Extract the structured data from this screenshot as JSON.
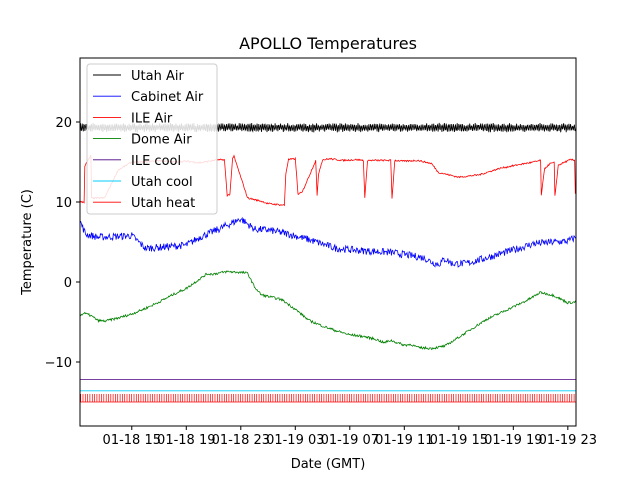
{
  "chart_data": {
    "type": "line",
    "title": "APOLLO Temperatures",
    "xlabel": "Date (GMT)",
    "ylabel": "Temperature (C)",
    "xlim": [
      11.2,
      47.6
    ],
    "ylim": [
      -18,
      28
    ],
    "x_unit": "hours since 01-18 00:00 GMT",
    "xticks": [
      {
        "x": 15,
        "label": "01-18 15"
      },
      {
        "x": 19,
        "label": "01-18 19"
      },
      {
        "x": 23,
        "label": "01-18 23"
      },
      {
        "x": 27,
        "label": "01-19 03"
      },
      {
        "x": 31,
        "label": "01-19 07"
      },
      {
        "x": 35,
        "label": "01-19 11"
      },
      {
        "x": 39,
        "label": "01-19 15"
      },
      {
        "x": 43,
        "label": "01-19 19"
      },
      {
        "x": 47,
        "label": "01-19 23"
      }
    ],
    "yticks": [
      {
        "y": -10,
        "label": "−10"
      },
      {
        "y": 0,
        "label": "0"
      },
      {
        "y": 10,
        "label": "10"
      },
      {
        "y": 20,
        "label": "20"
      }
    ],
    "legend_position": "top-left",
    "series": [
      {
        "name": "Utah Air",
        "color": "#000000",
        "style": "noisy",
        "x": [
          11.2,
          47.6
        ],
        "y": [
          19.3,
          19.3
        ]
      },
      {
        "name": "Cabinet Air",
        "color": "#0000ff",
        "style": "line",
        "x": [
          11.2,
          11.6,
          12.5,
          14.0,
          15.0,
          16.0,
          17.5,
          19.0,
          20.0,
          21.5,
          22.5,
          23.0,
          24.0,
          25.0,
          26.5,
          28.0,
          30.0,
          32.0,
          34.0,
          35.5,
          36.5,
          37.0,
          37.5,
          38.0,
          38.5,
          39.5,
          41.0,
          43.0,
          44.5,
          46.0,
          47.0,
          47.6
        ],
        "y": [
          7.6,
          6.0,
          5.6,
          5.7,
          5.8,
          4.2,
          4.4,
          4.6,
          5.6,
          6.7,
          7.5,
          7.9,
          6.6,
          6.5,
          6.0,
          5.3,
          4.2,
          3.9,
          3.7,
          3.3,
          3.0,
          2.5,
          2.2,
          2.9,
          2.3,
          2.3,
          3.0,
          4.0,
          4.8,
          5.0,
          5.1,
          5.6
        ]
      },
      {
        "name": "ILE Air",
        "color": "#ff0000",
        "style": "line",
        "x": [
          11.2,
          11.5,
          11.55,
          12.0,
          12.05,
          13.0,
          14.0,
          15.0,
          16.0,
          17.0,
          18.0,
          19.0,
          20.0,
          21.0,
          21.8,
          22.0,
          22.2,
          22.4,
          22.5,
          23.5,
          24.5,
          25.0,
          26.2,
          26.3,
          26.5,
          27.0,
          27.2,
          27.5,
          28.5,
          28.6,
          28.7,
          29.0,
          29.2,
          29.5,
          30.5,
          31.5,
          32.0,
          32.1,
          32.3,
          33.5,
          34.0,
          34.1,
          34.3,
          35.0,
          36.0,
          37.0,
          37.5,
          39.0,
          40.5,
          42.0,
          43.5,
          44.5,
          45.0,
          45.05,
          45.3,
          45.7,
          46.0,
          46.05,
          46.3,
          46.8,
          47.2,
          47.5,
          47.55,
          47.6
        ],
        "y": [
          10.0,
          10.0,
          14.5,
          15.8,
          10.5,
          10.5,
          14.0,
          15.0,
          15.0,
          15.2,
          15.0,
          15.1,
          14.9,
          15.2,
          15.3,
          10.8,
          11.0,
          15.5,
          15.7,
          10.5,
          10.1,
          9.8,
          9.6,
          13.5,
          15.3,
          15.4,
          11.0,
          11.2,
          15.2,
          10.7,
          13.5,
          15.3,
          15.3,
          15.4,
          15.2,
          15.3,
          15.2,
          10.5,
          15.2,
          15.2,
          15.2,
          10.4,
          15.2,
          15.1,
          15.2,
          14.8,
          13.7,
          13.1,
          13.4,
          14.2,
          14.7,
          15.0,
          15.2,
          10.8,
          14.2,
          14.8,
          14.9,
          10.7,
          14.6,
          15.0,
          15.3,
          15.2,
          11.2,
          11.2
        ]
      },
      {
        "name": "Dome Air",
        "color": "#008000",
        "style": "line",
        "x": [
          11.2,
          11.5,
          12.0,
          12.5,
          13.0,
          14.0,
          15.0,
          16.0,
          17.0,
          18.0,
          19.0,
          20.0,
          20.5,
          21.0,
          22.0,
          23.0,
          23.5,
          24.0,
          24.5,
          25.0,
          26.0,
          27.0,
          28.0,
          29.0,
          30.0,
          31.0,
          32.0,
          33.0,
          33.5,
          34.0,
          35.0,
          35.5,
          36.0,
          37.0,
          38.0,
          39.0,
          40.0,
          41.0,
          42.0,
          43.0,
          44.0,
          45.0,
          45.5,
          46.0,
          47.0,
          47.6
        ],
        "y": [
          -4.2,
          -3.9,
          -4.2,
          -4.8,
          -4.9,
          -4.5,
          -4.0,
          -3.3,
          -2.5,
          -1.6,
          -0.8,
          0.4,
          1.0,
          1.0,
          1.3,
          1.2,
          1.1,
          -0.6,
          -1.6,
          -1.8,
          -2.2,
          -3.4,
          -4.8,
          -5.5,
          -6.1,
          -6.6,
          -6.8,
          -7.2,
          -7.6,
          -7.3,
          -7.9,
          -7.8,
          -8.2,
          -8.3,
          -8.0,
          -6.9,
          -5.8,
          -4.7,
          -3.9,
          -3.1,
          -2.3,
          -1.3,
          -1.5,
          -1.7,
          -2.6,
          -2.5
        ]
      },
      {
        "name": "ILE cool",
        "color": "#4b0082",
        "style": "line",
        "x": [
          11.2,
          47.6
        ],
        "y": [
          -12.2,
          -12.2
        ]
      },
      {
        "name": "Utah cool",
        "color": "#00cfff",
        "style": "line",
        "x": [
          11.2,
          47.6
        ],
        "y": [
          -13.6,
          -13.6
        ]
      },
      {
        "name": "Utah heat",
        "color": "#ff0000",
        "style": "pulses",
        "x": [
          11.2,
          47.6
        ],
        "y_low": -15.0,
        "y_high": -14.0
      }
    ]
  }
}
